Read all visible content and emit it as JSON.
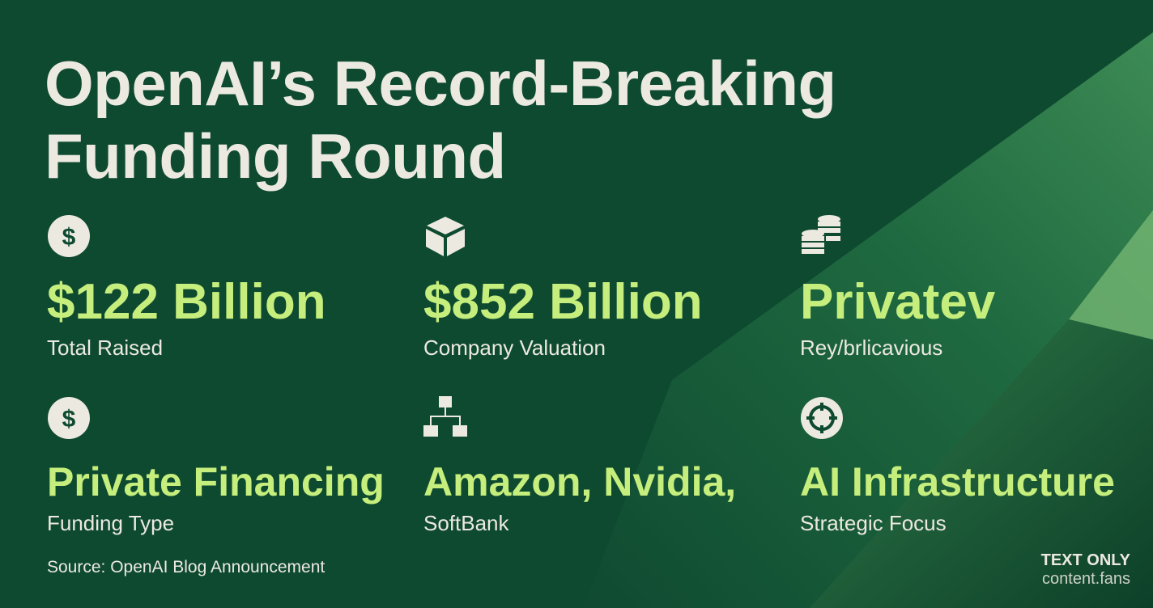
{
  "title": [
    "OpenAI’s Record-Breaking",
    "Funding Round"
  ],
  "stats": [
    {
      "value": "$122 Billion",
      "label": "Total Raised"
    },
    {
      "value": "$852 Billion",
      "label": "Company Valuation"
    },
    {
      "value": "Privatev",
      "label": "Rey/brlicavious"
    },
    {
      "value": "Private Financing",
      "label": "Funding Type"
    },
    {
      "value": "Amazon, Nvidia,",
      "label": "SoftBank"
    },
    {
      "value": "AI Infrastructure",
      "label": "Strategic Focus"
    }
  ],
  "source": "Source: OpenAI Blog Announcement",
  "badge": {
    "title": "TEXT ONLY",
    "site": "content.fans"
  }
}
